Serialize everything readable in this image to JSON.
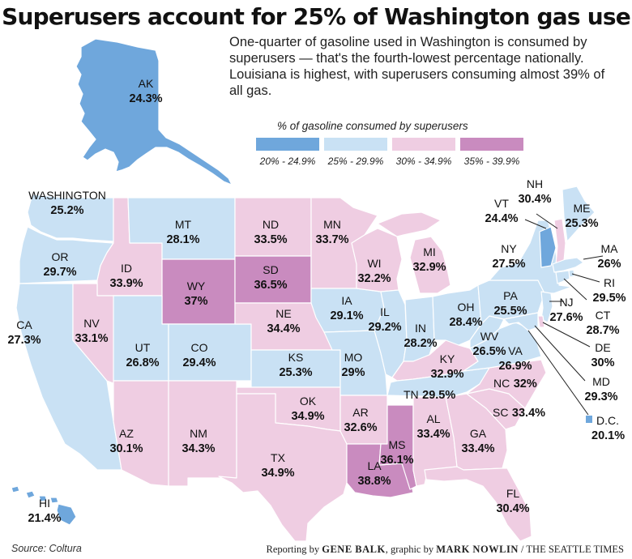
{
  "title": "Superusers account for 25% of Washington gas use",
  "subtitle": "One-quarter of gasoline used in Washington is consumed by superusers — that's the fourth-lowest percentage nationally. Louisiana is highest, with superusers consuming almost 39% of all gas.",
  "legend": {
    "title": "% of gasoline consumed by superusers",
    "bins": [
      {
        "label": "20% - 24.9%",
        "color": "#6fa7dc"
      },
      {
        "label": "25% - 29.9%",
        "color": "#c9e1f4"
      },
      {
        "label": "30% - 34.9%",
        "color": "#efcde2"
      },
      {
        "label": "35% - 39.9%",
        "color": "#c98bbf"
      }
    ]
  },
  "states": [
    {
      "id": "AK",
      "name": "AK",
      "value": "24.3%",
      "bin": 0
    },
    {
      "id": "HI",
      "name": "HI",
      "value": "21.4%",
      "bin": 0
    },
    {
      "id": "WA",
      "name": "WASHINGTON",
      "value": "25.2%",
      "bin": 1
    },
    {
      "id": "OR",
      "name": "OR",
      "value": "29.7%",
      "bin": 1
    },
    {
      "id": "CA",
      "name": "CA",
      "value": "27.3%",
      "bin": 1
    },
    {
      "id": "ID",
      "name": "ID",
      "value": "33.9%",
      "bin": 2
    },
    {
      "id": "NV",
      "name": "NV",
      "value": "33.1%",
      "bin": 2
    },
    {
      "id": "MT",
      "name": "MT",
      "value": "28.1%",
      "bin": 1
    },
    {
      "id": "WY",
      "name": "WY",
      "value": "37%",
      "bin": 3
    },
    {
      "id": "UT",
      "name": "UT",
      "value": "26.8%",
      "bin": 1
    },
    {
      "id": "CO",
      "name": "CO",
      "value": "29.4%",
      "bin": 1
    },
    {
      "id": "AZ",
      "name": "AZ",
      "value": "30.1%",
      "bin": 2
    },
    {
      "id": "NM",
      "name": "NM",
      "value": "34.3%",
      "bin": 2
    },
    {
      "id": "ND",
      "name": "ND",
      "value": "33.5%",
      "bin": 2
    },
    {
      "id": "SD",
      "name": "SD",
      "value": "36.5%",
      "bin": 3
    },
    {
      "id": "NE",
      "name": "NE",
      "value": "34.4%",
      "bin": 2
    },
    {
      "id": "KS",
      "name": "KS",
      "value": "25.3%",
      "bin": 1
    },
    {
      "id": "OK",
      "name": "OK",
      "value": "34.9%",
      "bin": 2
    },
    {
      "id": "TX",
      "name": "TX",
      "value": "34.9%",
      "bin": 2
    },
    {
      "id": "MN",
      "name": "MN",
      "value": "33.7%",
      "bin": 2
    },
    {
      "id": "IA",
      "name": "IA",
      "value": "29.1%",
      "bin": 1
    },
    {
      "id": "MO",
      "name": "MO",
      "value": "29%",
      "bin": 1
    },
    {
      "id": "AR",
      "name": "AR",
      "value": "32.6%",
      "bin": 2
    },
    {
      "id": "LA",
      "name": "LA",
      "value": "38.8%",
      "bin": 3
    },
    {
      "id": "WI",
      "name": "WI",
      "value": "32.2%",
      "bin": 2
    },
    {
      "id": "IL",
      "name": "IL",
      "value": "29.2%",
      "bin": 1
    },
    {
      "id": "MI",
      "name": "MI",
      "value": "32.9%",
      "bin": 2
    },
    {
      "id": "IN",
      "name": "IN",
      "value": "28.2%",
      "bin": 1
    },
    {
      "id": "OH",
      "name": "OH",
      "value": "28.4%",
      "bin": 1
    },
    {
      "id": "KY",
      "name": "KY",
      "value": "32.9%",
      "bin": 2
    },
    {
      "id": "TN",
      "name": "TN",
      "value": "29.5%",
      "bin": 1
    },
    {
      "id": "MS",
      "name": "MS",
      "value": "36.1%",
      "bin": 3
    },
    {
      "id": "AL",
      "name": "AL",
      "value": "33.4%",
      "bin": 2
    },
    {
      "id": "GA",
      "name": "GA",
      "value": "33.4%",
      "bin": 2
    },
    {
      "id": "FL",
      "name": "FL",
      "value": "30.4%",
      "bin": 2
    },
    {
      "id": "SC",
      "name": "SC",
      "value": "33.4%",
      "bin": 2
    },
    {
      "id": "NC",
      "name": "NC",
      "value": "32%",
      "bin": 2
    },
    {
      "id": "VA",
      "name": "VA",
      "value": "26.9%",
      "bin": 1
    },
    {
      "id": "WV",
      "name": "WV",
      "value": "26.5%",
      "bin": 1
    },
    {
      "id": "PA",
      "name": "PA",
      "value": "25.5%",
      "bin": 1
    },
    {
      "id": "NY",
      "name": "NY",
      "value": "27.5%",
      "bin": 1
    },
    {
      "id": "VT",
      "name": "VT",
      "value": "24.4%",
      "bin": 0
    },
    {
      "id": "NH",
      "name": "NH",
      "value": "30.4%",
      "bin": 2
    },
    {
      "id": "ME",
      "name": "ME",
      "value": "25.3%",
      "bin": 1
    },
    {
      "id": "MA",
      "name": "MA",
      "value": "26%",
      "bin": 1
    },
    {
      "id": "RI",
      "name": "RI",
      "value": "29.5%",
      "bin": 1
    },
    {
      "id": "CT",
      "name": "CT",
      "value": "28.7%",
      "bin": 1
    },
    {
      "id": "NJ",
      "name": "NJ",
      "value": "27.6%",
      "bin": 1
    },
    {
      "id": "DE",
      "name": "DE",
      "value": "30%",
      "bin": 2
    },
    {
      "id": "MD",
      "name": "MD",
      "value": "29.3%",
      "bin": 1
    },
    {
      "id": "DC",
      "name": "D.C.",
      "value": "20.1%",
      "bin": 0
    }
  ],
  "source": "Source: Coltura",
  "credit": {
    "prefix": "Reporting by",
    "reporter": "GENE BALK",
    "middle": ", graphic by",
    "artist": "MARK NOWLIN",
    "suffix": "/ THE SEATTLE TIMES"
  }
}
